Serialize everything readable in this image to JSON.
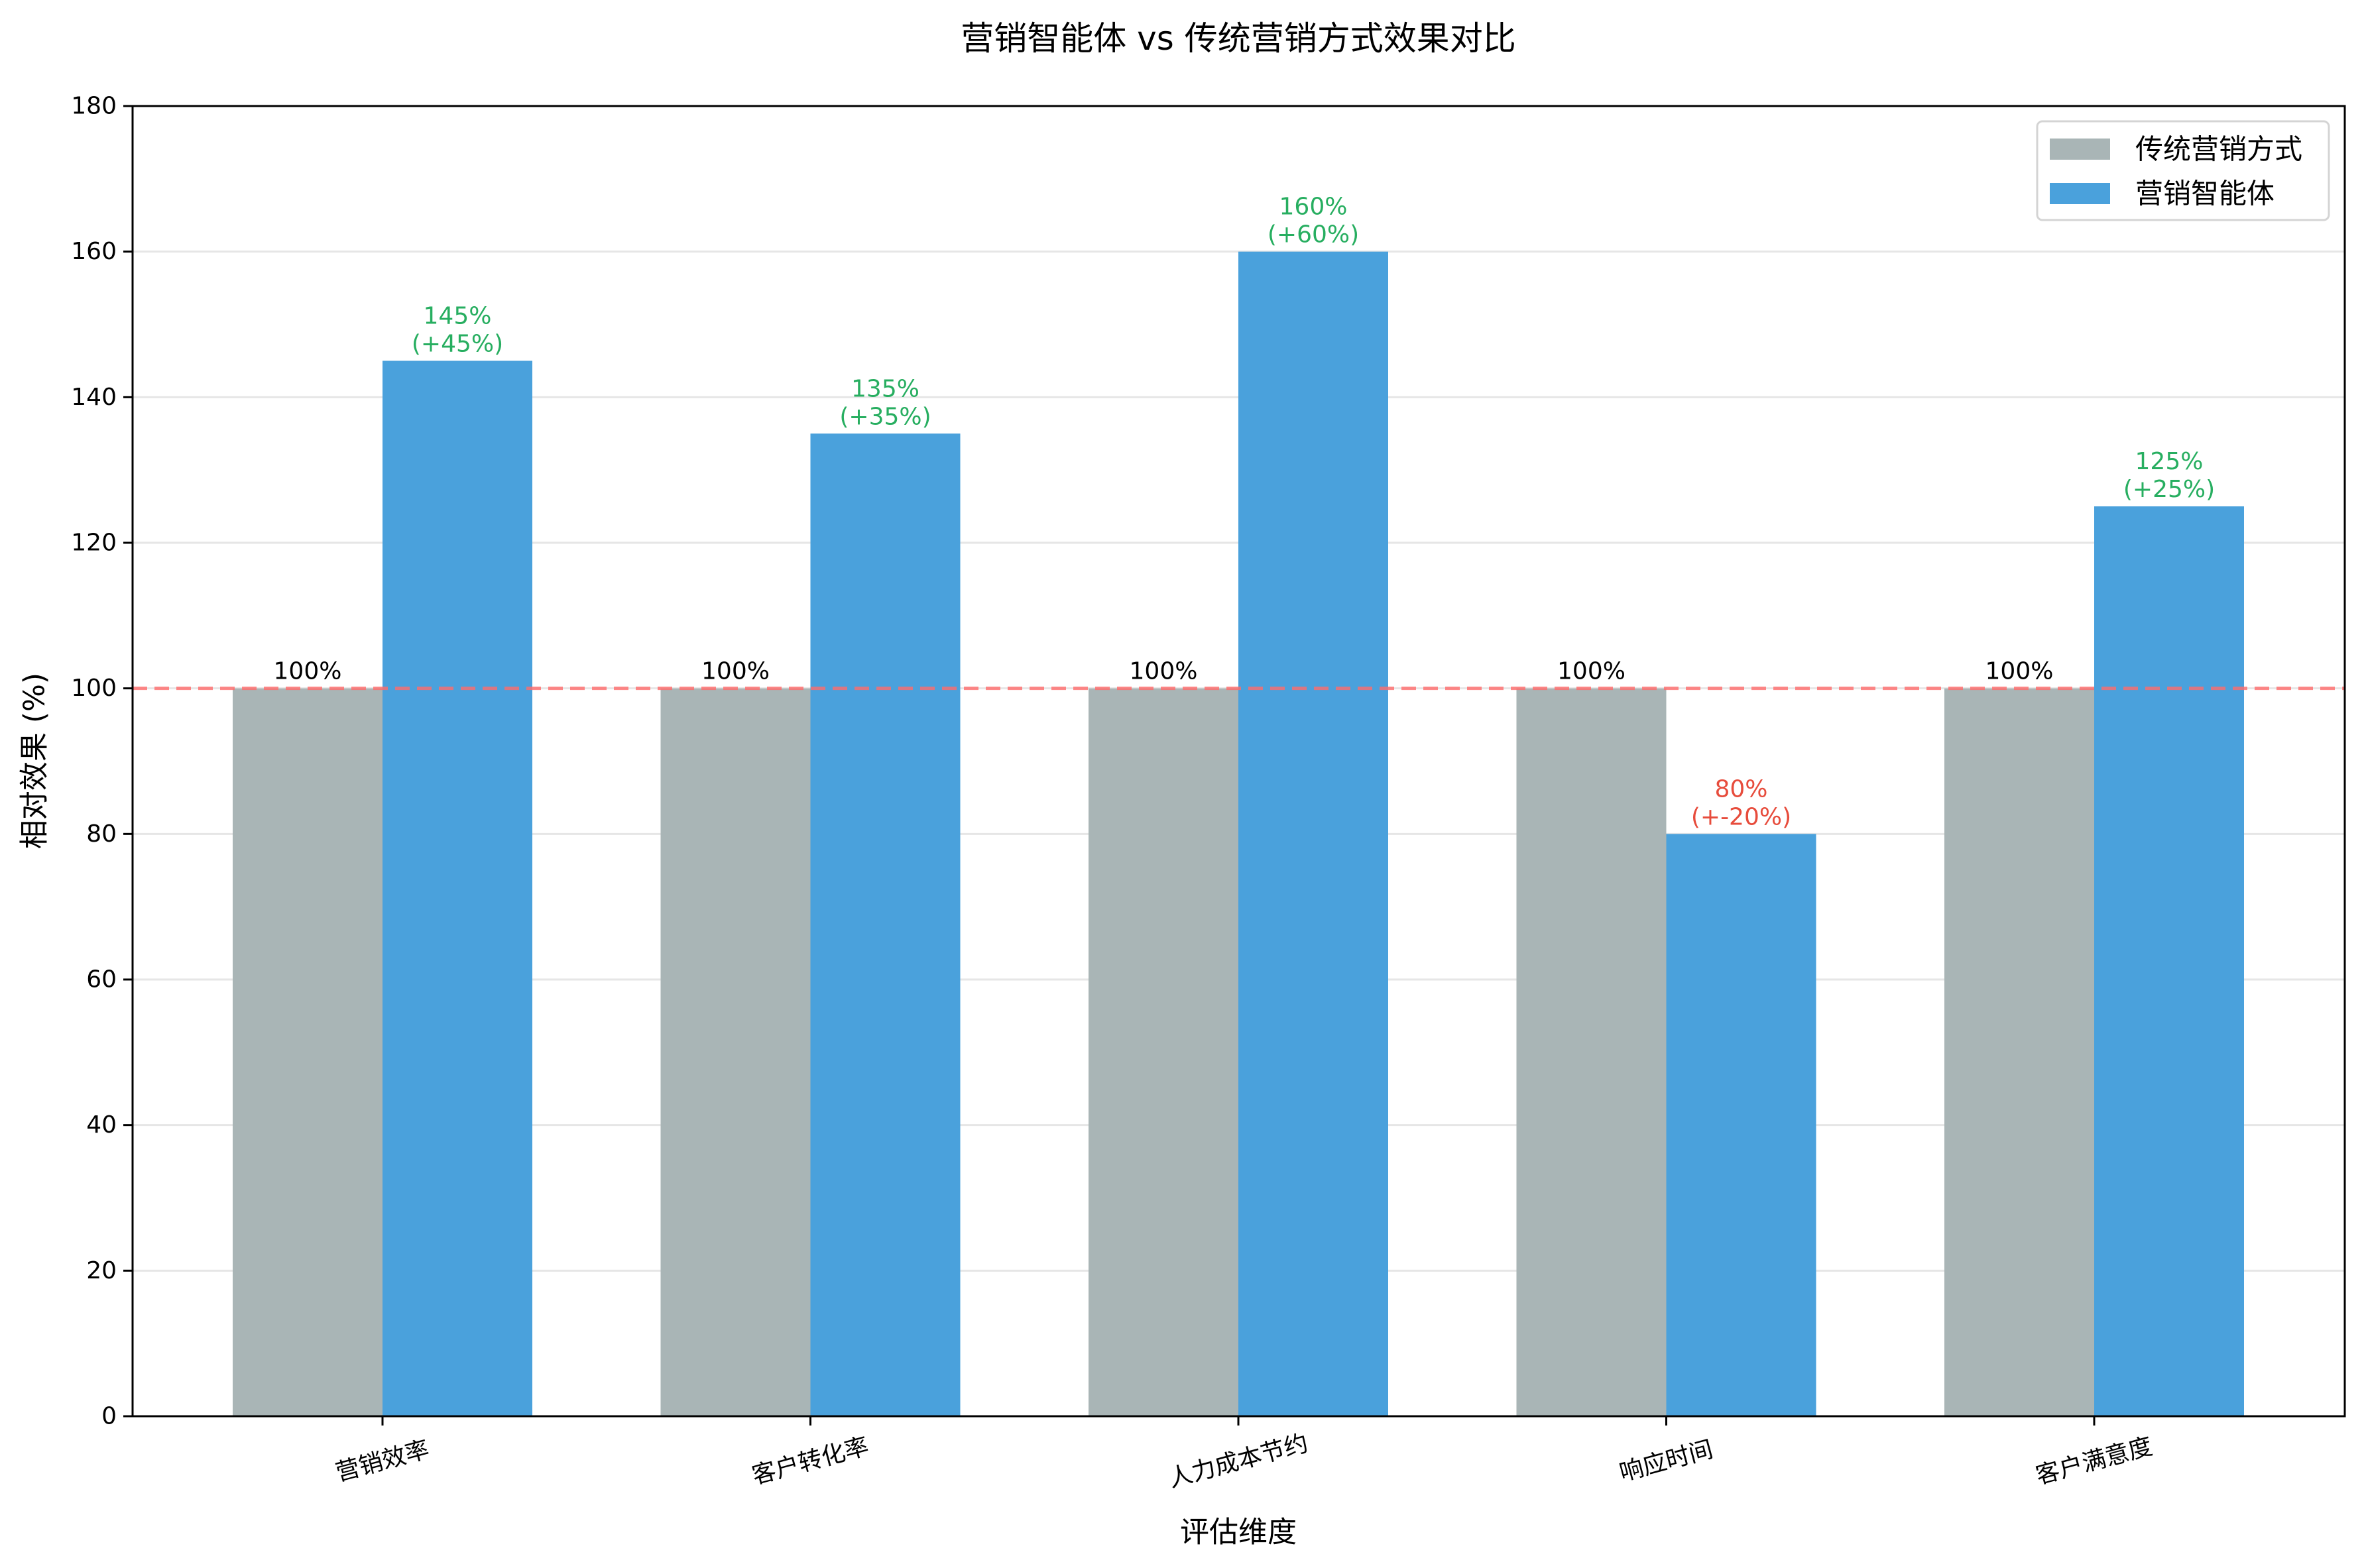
{
  "chart_data": {
    "type": "bar",
    "title": "营销智能体 vs 传统营销方式效果对比",
    "xlabel": "评估维度",
    "ylabel": "相对效果 (%)",
    "categories": [
      "营销效率",
      "客户转化率",
      "人力成本节约",
      "响应时间",
      "客户满意度"
    ],
    "series": [
      {
        "name": "传统营销方式",
        "color": "#a9b5b6",
        "values": [
          100,
          100,
          100,
          100,
          100
        ],
        "labels": [
          [
            "100%"
          ],
          [
            "100%"
          ],
          [
            "100%"
          ],
          [
            "100%"
          ],
          [
            "100%"
          ]
        ],
        "label_colors": [
          "#000000",
          "#000000",
          "#000000",
          "#000000",
          "#000000"
        ]
      },
      {
        "name": "营销智能体",
        "color": "#4aa1dc",
        "values": [
          145,
          135,
          160,
          80,
          125
        ],
        "labels": [
          [
            "145%",
            "(+45%)"
          ],
          [
            "135%",
            "(+35%)"
          ],
          [
            "160%",
            "(+60%)"
          ],
          [
            "80%",
            "(+-20%)"
          ],
          [
            "125%",
            "(+25%)"
          ]
        ],
        "label_colors": [
          "#27ae60",
          "#27ae60",
          "#27ae60",
          "#e74c3c",
          "#27ae60"
        ]
      }
    ],
    "ylim": [
      0,
      180
    ],
    "yticks": [
      0,
      20,
      40,
      60,
      80,
      100,
      120,
      140,
      160,
      180
    ],
    "grid": {
      "axis": "y",
      "color": "#e6e6e6"
    },
    "reference_line": {
      "y": 100,
      "color": "#ff6b6b",
      "style": "dashed",
      "alpha": 0.8
    },
    "legend": {
      "position": "upper right",
      "entries": [
        "传统营销方式",
        "营销智能体"
      ]
    },
    "xtick_rotation": -15
  }
}
